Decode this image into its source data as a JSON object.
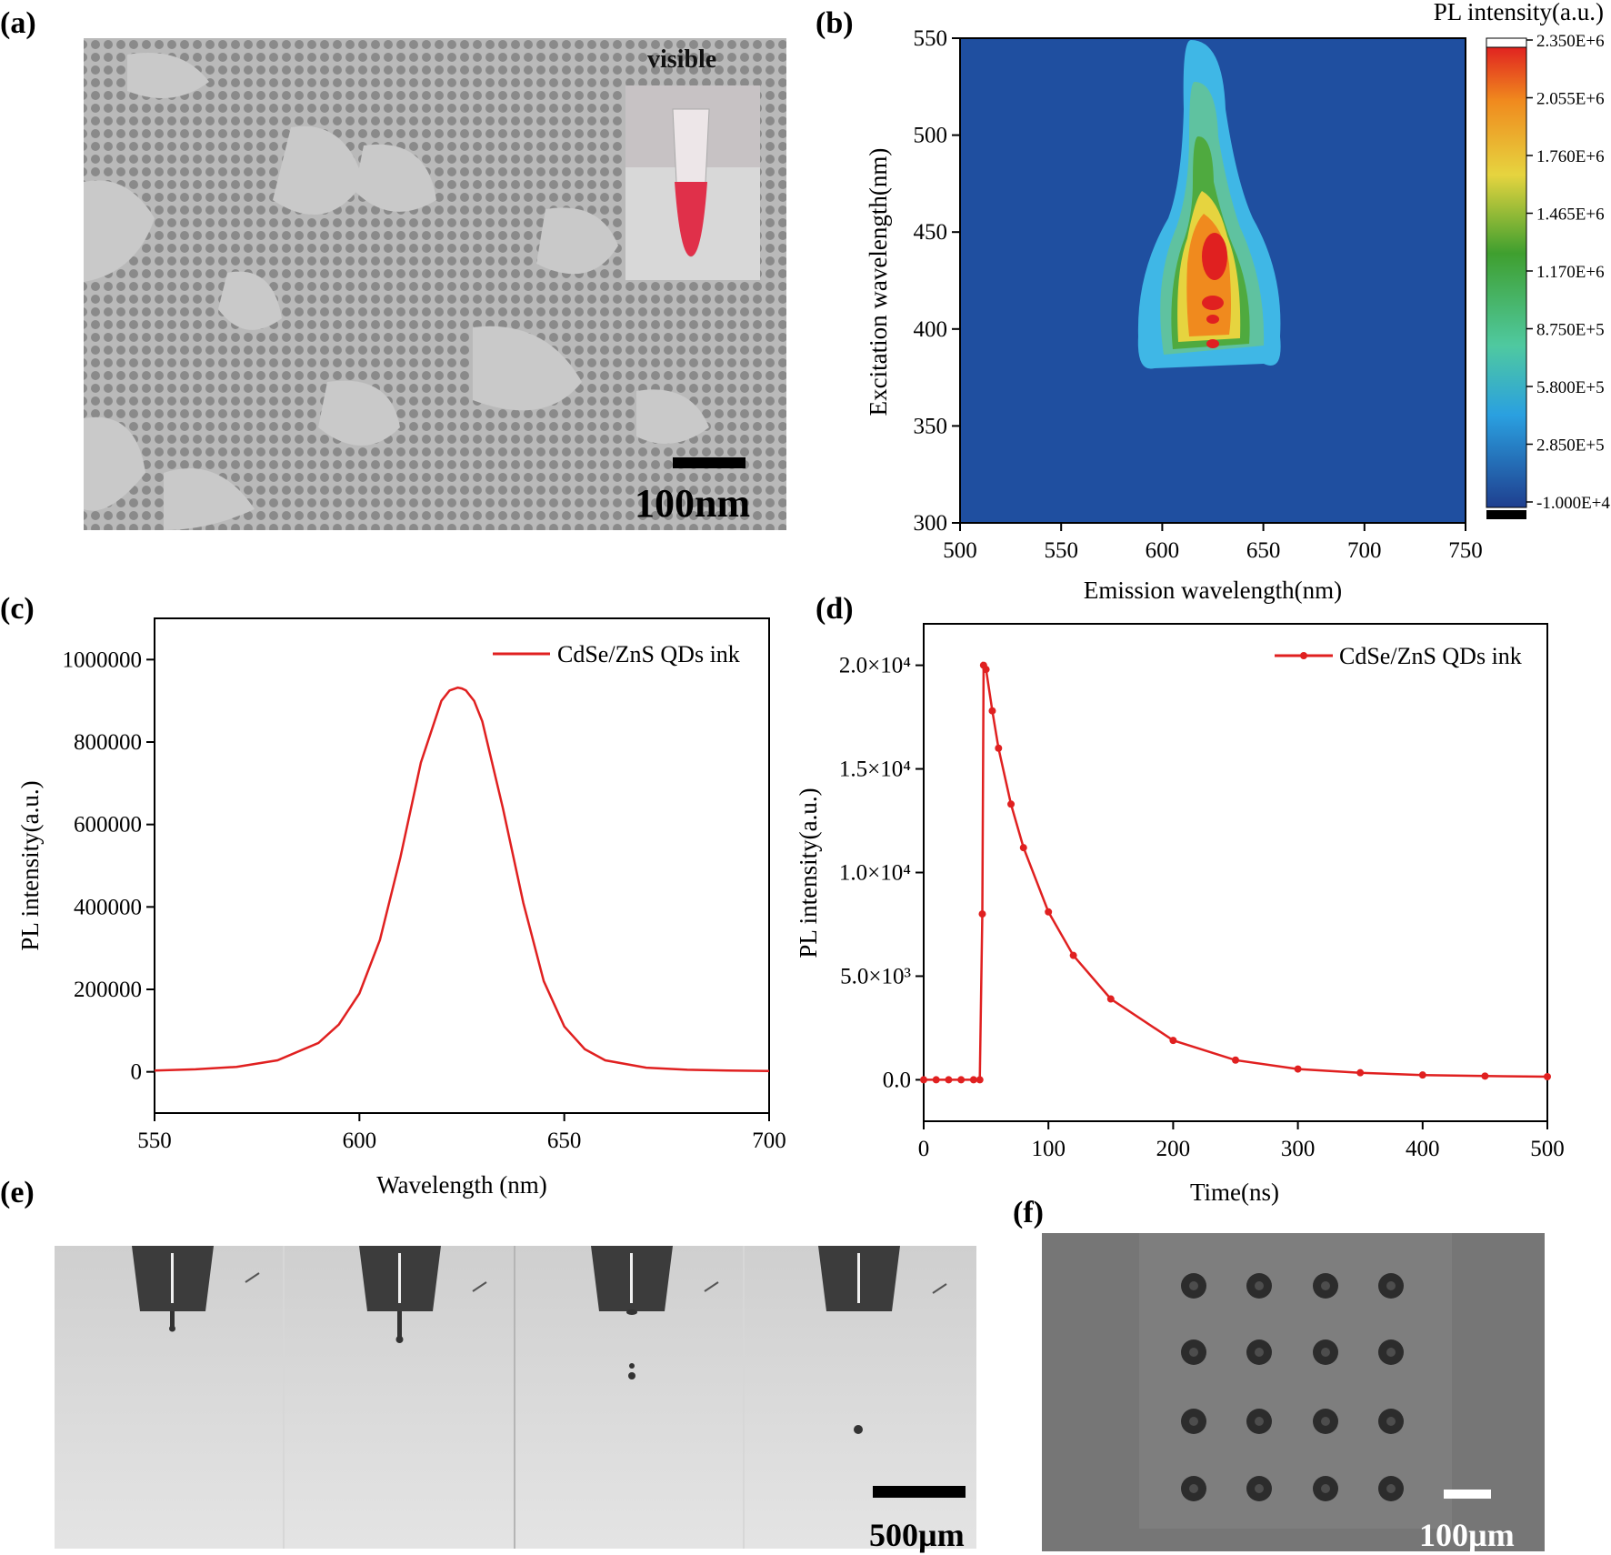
{
  "panels": {
    "a": {
      "label": "(a)",
      "inset_label": "visible",
      "scale_bar": "100nm"
    },
    "b": {
      "label": "(b)"
    },
    "c": {
      "label": "(c)"
    },
    "d": {
      "label": "(d)"
    },
    "e": {
      "label": "(e)",
      "scale_bar": "500µm"
    },
    "f": {
      "label": "(f)",
      "scale_bar": "100µm"
    }
  },
  "colors": {
    "accent": "#e02020",
    "map_bg": "#1f4fa0"
  },
  "chart_data": [
    {
      "id": "b",
      "type": "heatmap",
      "xlabel": "Emission wavelength(nm)",
      "ylabel": "Excitation wavelength(nm)",
      "xlim": [
        500,
        750
      ],
      "ylim": [
        300,
        550
      ],
      "xticks": [
        500,
        550,
        600,
        650,
        700,
        750
      ],
      "yticks": [
        300,
        350,
        400,
        450,
        500,
        550
      ],
      "colorbar_title": "PL intensity(a.u.)",
      "colorbar_ticks": [
        "2.350E+6",
        "2.055E+6",
        "1.760E+6",
        "1.465E+6",
        "1.170E+6",
        "8.750E+5",
        "5.800E+5",
        "2.850E+5",
        "-1.000E+4"
      ],
      "peak": {
        "x": 626,
        "y": 438
      }
    },
    {
      "id": "c",
      "type": "line",
      "xlabel": "Wavelength (nm)",
      "ylabel": "PL intensity(a.u.)",
      "xlim": [
        550,
        700
      ],
      "ylim": [
        -100000,
        1100000
      ],
      "xticks": [
        550,
        600,
        650,
        700
      ],
      "yticks": [
        0,
        200000,
        400000,
        600000,
        800000,
        1000000
      ],
      "series": [
        {
          "name": "CdSe/ZnS QDs ink",
          "x": [
            550,
            560,
            570,
            580,
            590,
            595,
            600,
            605,
            610,
            615,
            620,
            622,
            624,
            625,
            626,
            628,
            630,
            635,
            640,
            645,
            650,
            655,
            660,
            670,
            680,
            690,
            700
          ],
          "y": [
            3000,
            6000,
            12000,
            28000,
            70000,
            115000,
            190000,
            320000,
            520000,
            750000,
            900000,
            925000,
            932000,
            930000,
            925000,
            900000,
            850000,
            640000,
            410000,
            220000,
            110000,
            55000,
            28000,
            10000,
            5000,
            3000,
            2000
          ]
        }
      ]
    },
    {
      "id": "d",
      "type": "line",
      "xlabel": "Time(ns)",
      "ylabel": "PL intensity(a.u.)",
      "xlim": [
        0,
        500
      ],
      "ylim": [
        -2000,
        22000
      ],
      "xticks": [
        0,
        100,
        200,
        300,
        400,
        500
      ],
      "yticks": [
        "0.0",
        "5.0×10³",
        "1.0×10⁴",
        "1.5×10⁴",
        "2.0×10⁴"
      ],
      "ytick_values": [
        0,
        5000,
        10000,
        15000,
        20000
      ],
      "series": [
        {
          "name": "CdSe/ZnS QDs ink",
          "x": [
            0,
            10,
            20,
            30,
            40,
            45,
            47,
            48,
            50,
            55,
            60,
            70,
            80,
            100,
            120,
            150,
            200,
            250,
            300,
            350,
            400,
            450,
            500
          ],
          "y": [
            0,
            0,
            0,
            0,
            0,
            0,
            8000,
            20000,
            19800,
            17800,
            16000,
            13300,
            11200,
            8100,
            6000,
            3900,
            1900,
            950,
            520,
            340,
            230,
            180,
            150
          ]
        }
      ]
    }
  ]
}
